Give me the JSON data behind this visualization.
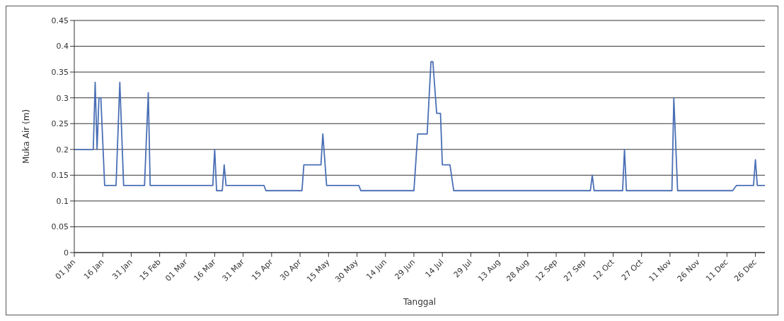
{
  "chart_data": {
    "type": "line",
    "xlabel": "Tanggal",
    "ylabel": "Muka Air (m)",
    "x": [
      "--01-01",
      "--01-11",
      "--01-12",
      "--01-13",
      "--01-14",
      "--01-15",
      "--01-17",
      "--01-23",
      "--01-25",
      "--01-27",
      "--02-07",
      "--02-09",
      "--02-10",
      "--03-15",
      "--03-16",
      "--03-17",
      "--03-20",
      "--03-21",
      "--03-22",
      "--04-11",
      "--04-12",
      "--05-01",
      "--05-02",
      "--05-11",
      "--05-12",
      "--05-14",
      "--05-31",
      "--06-01",
      "--06-29",
      "--07-01",
      "--07-06",
      "--07-08",
      "--07-09",
      "--07-11",
      "--07-13",
      "--07-14",
      "--07-18",
      "--07-20",
      "--09-30",
      "--10-01",
      "--10-02",
      "--10-17",
      "--10-18",
      "--10-19",
      "--11-12",
      "--11-13",
      "--11-15",
      "--12-14",
      "--12-16",
      "--12-25",
      "--12-26",
      "--12-27",
      "--12-31"
    ],
    "series": [
      {
        "color": "#4a6fb5",
        "values": [
          0.2,
          0.2,
          0.33,
          0.2,
          0.3,
          0.3,
          0.13,
          0.13,
          0.33,
          0.13,
          0.13,
          0.31,
          0.13,
          0.13,
          0.2,
          0.12,
          0.12,
          0.17,
          0.13,
          0.13,
          0.12,
          0.12,
          0.17,
          0.17,
          0.23,
          0.13,
          0.13,
          0.12,
          0.12,
          0.23,
          0.23,
          0.37,
          0.37,
          0.27,
          0.27,
          0.17,
          0.17,
          0.12,
          0.12,
          0.15,
          0.12,
          0.12,
          0.2,
          0.12,
          0.12,
          0.3,
          0.12,
          0.12,
          0.13,
          0.13,
          0.18,
          0.13,
          0.13
        ]
      }
    ],
    "xlim": [
      "--01-01",
      "--12-31"
    ],
    "xticks": [
      {
        "value": "--01-01",
        "label": "01 Jan"
      },
      {
        "value": "--01-16",
        "label": "16 Jan"
      },
      {
        "value": "--01-31",
        "label": "31 Jan"
      },
      {
        "value": "--02-15",
        "label": "15 Feb"
      },
      {
        "value": "--03-01",
        "label": "01 Mar"
      },
      {
        "value": "--03-16",
        "label": "16 Mar"
      },
      {
        "value": "--03-31",
        "label": "31 Mar"
      },
      {
        "value": "--04-15",
        "label": "15 Apr"
      },
      {
        "value": "--04-30",
        "label": "30 Apr"
      },
      {
        "value": "--05-15",
        "label": "15 May"
      },
      {
        "value": "--05-30",
        "label": "30 May"
      },
      {
        "value": "--06-14",
        "label": "14 Jun"
      },
      {
        "value": "--06-29",
        "label": "29 Jun"
      },
      {
        "value": "--07-14",
        "label": "14 Jul"
      },
      {
        "value": "--07-29",
        "label": "29 Jul"
      },
      {
        "value": "--08-13",
        "label": "13 Aug"
      },
      {
        "value": "--08-28",
        "label": "28 Aug"
      },
      {
        "value": "--09-12",
        "label": "12 Sep"
      },
      {
        "value": "--09-27",
        "label": "27 Sep"
      },
      {
        "value": "--10-12",
        "label": "12 Oct"
      },
      {
        "value": "--10-27",
        "label": "27 Oct"
      },
      {
        "value": "--11-11",
        "label": "11 Nov"
      },
      {
        "value": "--11-26",
        "label": "26 Nov"
      },
      {
        "value": "--12-11",
        "label": "11 Dec"
      },
      {
        "value": "--12-26",
        "label": "26 Dec"
      }
    ],
    "ylim": [
      0,
      0.45
    ],
    "yticks": [
      0,
      0.05,
      0.1,
      0.15,
      0.2,
      0.25,
      0.3,
      0.35,
      0.4,
      0.45
    ],
    "grid": "y",
    "legend": false,
    "marker": "none",
    "line_style": "solid"
  }
}
